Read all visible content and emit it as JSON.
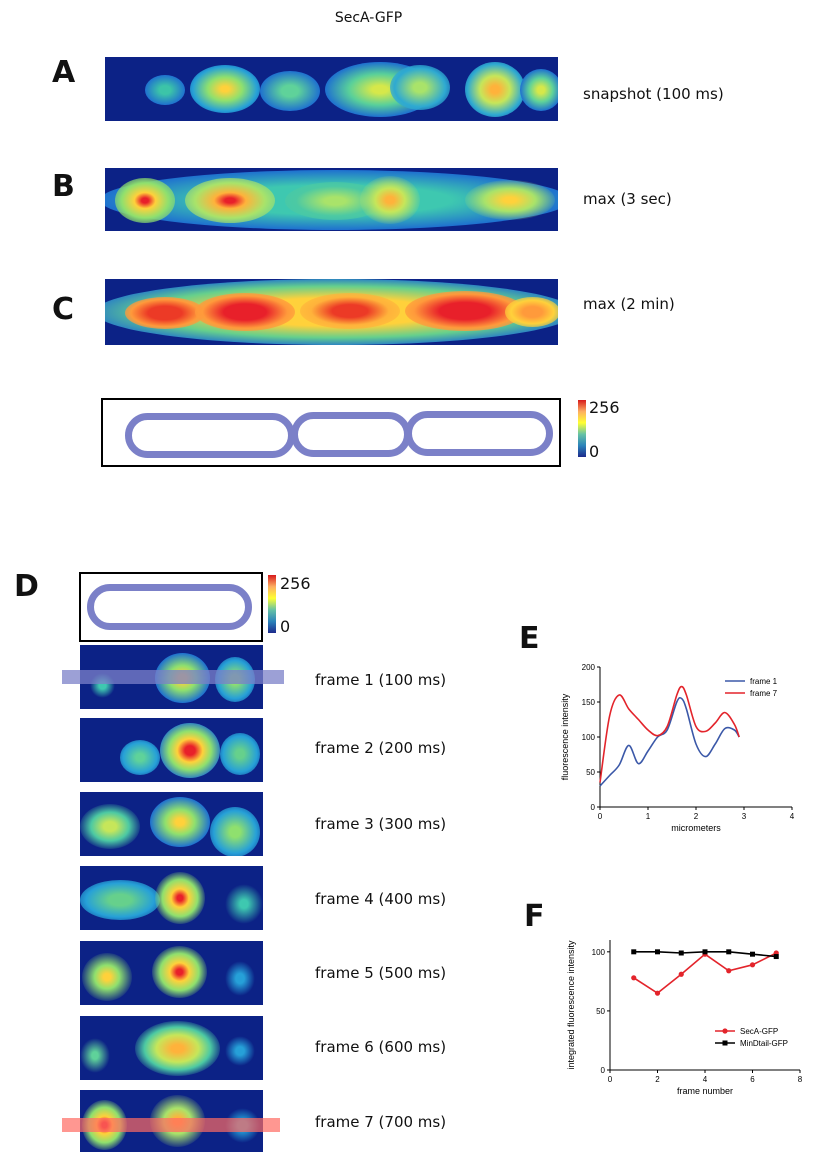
{
  "figure": {
    "title": "SecA-GFP",
    "panels": {
      "A": {
        "label": "A",
        "caption": "snapshot  (100 ms)"
      },
      "B": {
        "label": "B",
        "caption": "max (3 sec)"
      },
      "C": {
        "label": "C",
        "caption": "max (2 min)"
      },
      "D": {
        "label": "D"
      },
      "E": {
        "label": "E"
      },
      "F": {
        "label": "F"
      }
    },
    "colorbar": {
      "max": "256",
      "min": "0"
    },
    "frames": [
      {
        "caption": "frame 1 (100 ms)"
      },
      {
        "caption": "frame 2 (200 ms)"
      },
      {
        "caption": "frame 3 (300 ms)"
      },
      {
        "caption": "frame 4 (400 ms)"
      },
      {
        "caption": "frame 5 (500 ms)"
      },
      {
        "caption": "frame 6 (600 ms)"
      },
      {
        "caption": "frame 7 (700 ms)"
      }
    ],
    "colors": {
      "frame1": "#3b58a8",
      "frame7": "#e3242b",
      "cell_outline": "#7b80c8",
      "heat_bg": "#0c2286"
    }
  },
  "chart_data": [
    {
      "type": "line",
      "panel": "E",
      "xlabel": "micrometers",
      "ylabel": "fluorescence intensity",
      "xlim": [
        0,
        4
      ],
      "ylim": [
        0,
        200
      ],
      "xticks": [
        "0",
        "1",
        "2",
        "3",
        "4"
      ],
      "yticks": [
        "0",
        "50",
        "100",
        "150",
        "200"
      ],
      "legend_position": "top-right",
      "series": [
        {
          "name": "frame 1",
          "color": "#3b58a8",
          "x": [
            0,
            0.2,
            0.4,
            0.6,
            0.8,
            1.0,
            1.2,
            1.4,
            1.6,
            1.7,
            1.8,
            2.0,
            2.2,
            2.4,
            2.6,
            2.8,
            2.9
          ],
          "y": [
            30,
            45,
            60,
            88,
            62,
            80,
            100,
            110,
            150,
            155,
            140,
            90,
            72,
            90,
            112,
            110,
            100
          ]
        },
        {
          "name": "frame 7",
          "color": "#e3242b",
          "x": [
            0,
            0.2,
            0.4,
            0.6,
            0.8,
            1.0,
            1.2,
            1.4,
            1.6,
            1.7,
            1.8,
            2.0,
            2.2,
            2.4,
            2.6,
            2.8,
            2.9
          ],
          "y": [
            35,
            130,
            160,
            140,
            125,
            110,
            102,
            115,
            160,
            172,
            160,
            115,
            108,
            120,
            135,
            118,
            100
          ]
        }
      ]
    },
    {
      "type": "line",
      "panel": "F",
      "xlabel": "frame number",
      "ylabel": "integrated fluorescence intensity",
      "xlim": [
        0,
        8
      ],
      "ylim": [
        0,
        110
      ],
      "xticks": [
        "0",
        "2",
        "4",
        "6",
        "8"
      ],
      "yticks": [
        "0",
        "50",
        "100"
      ],
      "legend_position": "right",
      "series": [
        {
          "name": "SecA-GFP",
          "color": "#e3242b",
          "marker": "circle",
          "x": [
            1,
            2,
            3,
            4,
            5,
            6,
            7
          ],
          "y": [
            78,
            65,
            81,
            98,
            84,
            89,
            99
          ]
        },
        {
          "name": "MinDtail-GFP",
          "color": "#000000",
          "marker": "square",
          "x": [
            1,
            2,
            3,
            4,
            5,
            6,
            7
          ],
          "y": [
            100,
            100,
            99,
            100,
            100,
            98,
            96
          ]
        }
      ]
    }
  ]
}
